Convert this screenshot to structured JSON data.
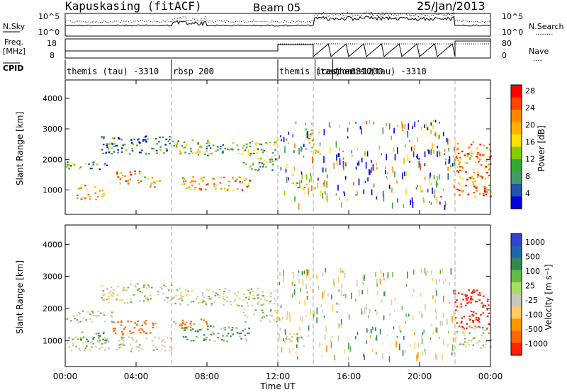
{
  "header": {
    "station": "Kapuskasing (fitACF)",
    "beam": "Beam 05",
    "date": "25/Jan/2013"
  },
  "noise_panel": {
    "left_label": "N.Sky",
    "left_ticks": [
      "10^5",
      "10^0"
    ],
    "right_ticks": [
      "10^5",
      "10^0"
    ],
    "right_label": "N.Search",
    "right_legend": "........"
  },
  "freq_panel": {
    "left_label_1": "Freq.",
    "left_label_2": "[MHz]",
    "left_ticks": [
      "18",
      "8"
    ],
    "right_ticks": [
      "80",
      "0"
    ],
    "right_label": "Nave",
    "right_legend": "...."
  },
  "cpid": {
    "label": "CPID",
    "segments": [
      {
        "start": 0,
        "end": 6,
        "text": "themis (tau) -3310"
      },
      {
        "start": 6,
        "end": 12,
        "text": "rbsp 200"
      },
      {
        "start": 12,
        "end": 14.1,
        "text": "themis (tau) -3310"
      },
      {
        "start": 14.1,
        "end": 15.1,
        "text": "icescon -1200"
      },
      {
        "start": 15.1,
        "end": 22,
        "text": "themis (tau) -3310"
      }
    ]
  },
  "power_scale": {
    "title": "Power [dB]",
    "ticks": [
      "28",
      "24",
      "20",
      "16",
      "12",
      "8",
      "4"
    ],
    "colors": [
      "#ff0000",
      "#ff4400",
      "#ff8800",
      "#ffb000",
      "#ffe000",
      "#88cc00",
      "#33aa33",
      "#449966",
      "#2255aa",
      "#0000dd"
    ]
  },
  "velocity_scale": {
    "title": "Velocity [m s⁻¹]",
    "ticks": [
      "1000",
      "500",
      "100",
      "25",
      "-25",
      "-100",
      "-500",
      "-1000"
    ],
    "colors": [
      "#3344cc",
      "#2266aa",
      "#338855",
      "#66bb44",
      "#aadd66",
      "#c8c8c0",
      "#ffcc66",
      "#ff9900",
      "#ff6600",
      "#ff2200"
    ]
  },
  "axes": {
    "y_label": "Slant Range [km]",
    "y_ticks": [
      "4000",
      "3000",
      "2000",
      "1000"
    ],
    "x_label": "Time UT",
    "x_ticks": [
      "00:00",
      "04:00",
      "08:00",
      "12:00",
      "16:00",
      "20:00",
      "00:00"
    ]
  },
  "chart_data": [
    {
      "type": "heatmap",
      "title": "Power [dB]",
      "xlabel": "Time UT",
      "ylabel": "Slant Range [km]",
      "xlim_hours": [
        0,
        24
      ],
      "ylim_km": [
        200,
        4600
      ],
      "colorbar_range_db": [
        0,
        30
      ],
      "scatter_patches": [
        {
          "t0": 0.0,
          "t1": 2.6,
          "r0": 1700,
          "r1": 1950,
          "v": 10
        },
        {
          "t0": 0.6,
          "t1": 2.2,
          "r0": 700,
          "r1": 1200,
          "v": 20
        },
        {
          "t0": 2.8,
          "t1": 4.2,
          "r0": 1200,
          "r1": 1650,
          "v": 22
        },
        {
          "t0": 4.2,
          "t1": 5.4,
          "r0": 1100,
          "r1": 1450,
          "v": 16
        },
        {
          "t0": 2.0,
          "t1": 6.0,
          "r0": 2200,
          "r1": 2800,
          "v": 6
        },
        {
          "t0": 6.0,
          "t1": 11.9,
          "r0": 2150,
          "r1": 2650,
          "v": 12
        },
        {
          "t0": 6.5,
          "t1": 10.5,
          "r0": 1000,
          "r1": 1450,
          "v": 20
        },
        {
          "t0": 10.0,
          "t1": 12.0,
          "r0": 1650,
          "r1": 2100,
          "v": 10
        },
        {
          "t0": 12.8,
          "t1": 13.6,
          "r0": 900,
          "r1": 1300,
          "v": 16
        },
        {
          "t0": 13.7,
          "t1": 14.3,
          "r0": 2200,
          "r1": 3000,
          "v": 18
        },
        {
          "t0": 21.9,
          "t1": 24.0,
          "r0": 800,
          "r1": 2600,
          "v": 22
        }
      ]
    },
    {
      "type": "heatmap",
      "title": "Velocity [m s⁻¹]",
      "xlabel": "Time UT",
      "ylabel": "Slant Range [km]",
      "xlim_hours": [
        0,
        24
      ],
      "ylim_km": [
        200,
        4600
      ],
      "colorbar_range_ms": [
        -1000,
        1000
      ],
      "scatter_patches": [
        {
          "t0": 0.0,
          "t1": 2.6,
          "r0": 1600,
          "r1": 1950,
          "v": 0
        },
        {
          "t0": 0.0,
          "t1": 6.0,
          "r0": 700,
          "r1": 1150,
          "v": 0
        },
        {
          "t0": 2.0,
          "t1": 6.0,
          "r0": 2200,
          "r1": 2800,
          "v": 0
        },
        {
          "t0": 0.8,
          "t1": 2.4,
          "r0": 1000,
          "r1": 1300,
          "v": 80
        },
        {
          "t0": 2.6,
          "t1": 5.2,
          "r0": 1200,
          "r1": 1650,
          "v": -400
        },
        {
          "t0": 6.0,
          "t1": 11.9,
          "r0": 2100,
          "r1": 2650,
          "v": 0
        },
        {
          "t0": 6.5,
          "t1": 10.5,
          "r0": 1000,
          "r1": 1500,
          "v": 60
        },
        {
          "t0": 6.0,
          "t1": 8.0,
          "r0": 1400,
          "r1": 1700,
          "v": -300
        },
        {
          "t0": 10.0,
          "t1": 12.0,
          "r0": 1600,
          "r1": 2000,
          "v": 0
        },
        {
          "t0": 12.3,
          "t1": 13.6,
          "r0": 850,
          "r1": 1250,
          "v": 0
        },
        {
          "t0": 21.9,
          "t1": 24.0,
          "r0": 1400,
          "r1": 2600,
          "v": -700
        },
        {
          "t0": 21.9,
          "t1": 24.0,
          "r0": 800,
          "r1": 1500,
          "v": 0
        }
      ]
    }
  ]
}
